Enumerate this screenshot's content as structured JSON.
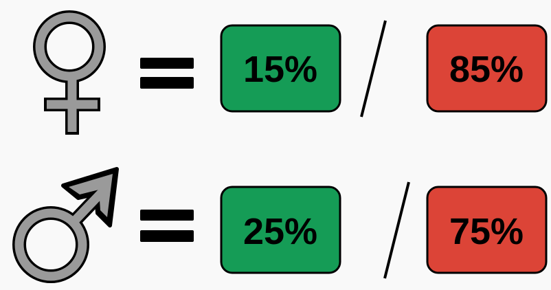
{
  "rows": [
    {
      "left": "15%",
      "right": "85%"
    },
    {
      "left": "25%",
      "right": "75%"
    }
  ]
}
